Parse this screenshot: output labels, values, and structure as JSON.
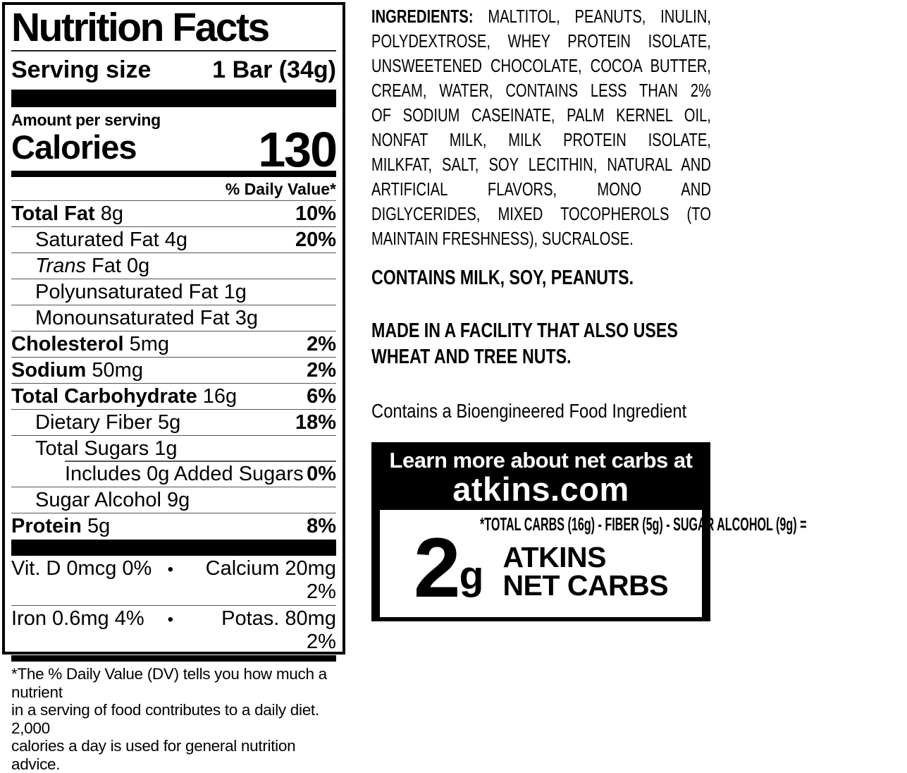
{
  "colors": {
    "ink": "#000000",
    "paper": "#ffffff",
    "hairline": "#555555"
  },
  "nutrition_panel": {
    "title": "Nutrition Facts",
    "serving_size_label": "Serving size",
    "serving_size_value": "1 Bar (34g)",
    "amount_per_serving": "Amount per serving",
    "calories_label": "Calories",
    "calories_value": "130",
    "daily_value_header": "% Daily Value*",
    "rows": [
      {
        "bold": "Total Fat",
        "text": " 8g",
        "dv": "10%"
      },
      {
        "text": "Saturated Fat 4g",
        "dv": "20%"
      },
      {
        "italic": "Trans",
        "text": " Fat 0g",
        "dv": ""
      },
      {
        "text": "Polyunsaturated Fat 1g",
        "dv": ""
      },
      {
        "text": "Monounsaturated Fat 3g",
        "dv": ""
      },
      {
        "bold": "Cholesterol",
        "text": " 5mg",
        "dv": "2%"
      },
      {
        "bold": "Sodium",
        "text": " 50mg",
        "dv": "2%"
      },
      {
        "bold": "Total Carbohydrate",
        "text": " 16g",
        "dv": "6%"
      },
      {
        "text": "Dietary Fiber 5g",
        "dv": "18%"
      },
      {
        "text": "Total Sugars 1g",
        "dv": ""
      },
      {
        "text": "Includes 0g Added Sugars",
        "dv": "0%"
      },
      {
        "text": "Sugar Alcohol 9g",
        "dv": ""
      },
      {
        "bold": "Protein",
        "text": " 5g",
        "dv": "8%"
      }
    ],
    "micronutrients": {
      "bullet": "•",
      "rows": [
        {
          "left": "Vit. D 0mcg 0%",
          "right": "Calcium 20mg 2%"
        },
        {
          "left": "Iron 0.6mg 4%",
          "right": "Potas. 80mg 2%"
        }
      ]
    },
    "footnote_lines": [
      "*The % Daily Value (DV) tells you how much a nutrient",
      "in a serving of food contributes to a daily diet. 2,000",
      "calories a day is used for general nutrition advice."
    ]
  },
  "right_column": {
    "ingredients": {
      "label": "INGREDIENTS:",
      "lines": [
        "MALTITOL, PEANUTS, INULIN,",
        "POLYDEXTROSE, WHEY PROTEIN ISOLATE,",
        "UNSWEETENED CHOCOLATE, COCOA BUTTER,",
        "CREAM, WATER, CONTAINS LESS THAN 2%",
        "OF SODIUM CASEINATE, PALM KERNEL OIL,",
        "NONFAT MILK, MILK PROTEIN ISOLATE,",
        "MILKFAT, SALT, SOY LECITHIN, NATURAL AND",
        "ARTIFICIAL FLAVORS, MONO AND",
        "DIGLYCERIDES, MIXED TOCOPHEROLS (TO",
        "MAINTAIN FRESHNESS), SUCRALOSE."
      ]
    },
    "contains_statement": "CONTAINS MILK, SOY, PEANUTS.",
    "facility_lines": [
      "MADE IN A FACILITY THAT ALSO USES",
      "WHEAT AND TREE NUTS."
    ],
    "bioengineered": "Contains a Bioengineered Food Ingredient",
    "net_carbs_box": {
      "headline": "Learn more about net carbs at",
      "site": "atkins.com",
      "equation": "*TOTAL CARBS (16g) - FIBER (5g) - SUGAR ALCOHOL (9g) =",
      "amount": "2",
      "unit": "g",
      "brand_line1": "ATKINS",
      "brand_line2": "NET CARBS"
    }
  }
}
